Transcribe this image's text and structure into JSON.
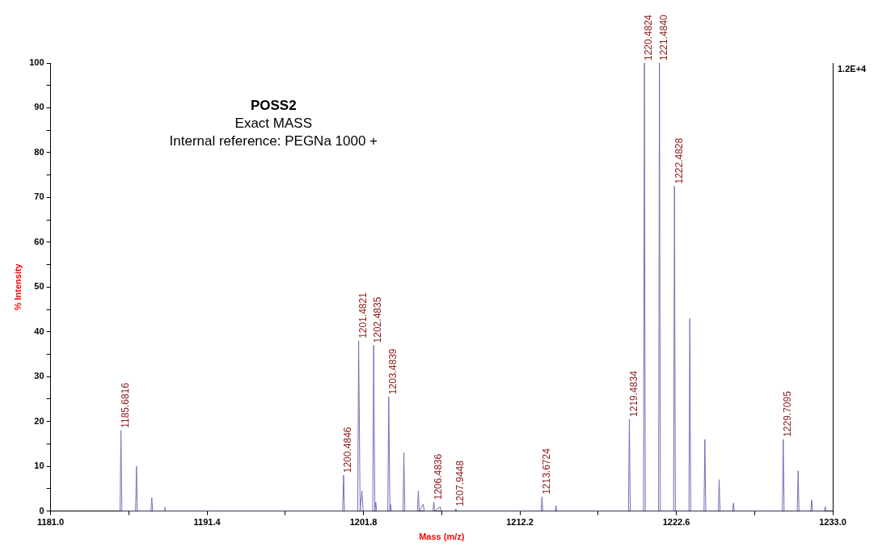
{
  "chart_data": {
    "type": "line",
    "title": "POSS2",
    "subtitle": "Exact MASS",
    "xlabel": "Mass (m/z)",
    "ylabel": "% Intensity",
    "annotations": [
      "Internal reference: PEGNa 1000 +",
      "1.2E+4",
      {
        "text": "1185.6816",
        "x": 1185.68,
        "y": 18
      },
      {
        "text": "1200.4846",
        "x": 1200.48,
        "y": 8
      },
      {
        "text": "1201.4821",
        "x": 1201.48,
        "y": 38
      },
      {
        "text": "1202.4835",
        "x": 1202.48,
        "y": 37
      },
      {
        "text": "1203.4839",
        "x": 1203.48,
        "y": 25.5
      },
      {
        "text": "1206.4836",
        "x": 1206.48,
        "y": 2
      },
      {
        "text": "1207.9448",
        "x": 1207.94,
        "y": 0.5
      },
      {
        "text": "1213.6724",
        "x": 1213.67,
        "y": 3.2
      },
      {
        "text": "1219.4834",
        "x": 1219.48,
        "y": 20.5
      },
      {
        "text": "1220.4824",
        "x": 1220.48,
        "y": 100
      },
      {
        "text": "1221.4840",
        "x": 1221.48,
        "y": 100
      },
      {
        "text": "1222.4828",
        "x": 1222.48,
        "y": 72.5
      },
      {
        "text": "1229.7095",
        "x": 1229.71,
        "y": 16
      }
    ],
    "series": [
      {
        "color": "#7070b8",
        "x": [
          1185.62,
          1185.68,
          1185.74,
          1186.65,
          1186.71,
          1186.77,
          1187.67,
          1187.73,
          1187.79,
          1188.55,
          1188.6,
          1188.65,
          1200.42,
          1200.48,
          1200.54,
          1201.42,
          1201.48,
          1201.58,
          1201.7,
          1201.78,
          1202.42,
          1202.48,
          1202.56,
          1202.62,
          1202.68,
          1203.42,
          1203.48,
          1203.56,
          1203.6,
          1203.66,
          1204.43,
          1204.49,
          1204.55,
          1205.39,
          1205.45,
          1205.51,
          1205.77,
          1205.85,
          1206.42,
          1206.48,
          1206.54,
          1206.9,
          1206.98,
          1207.88,
          1207.94,
          1208.0,
          1213.61,
          1213.67,
          1213.73,
          1214.54,
          1214.6,
          1214.66,
          1219.42,
          1219.48,
          1219.54,
          1220.42,
          1220.48,
          1220.54,
          1221.42,
          1221.48,
          1221.54,
          1222.42,
          1222.48,
          1222.54,
          1223.44,
          1223.5,
          1223.56,
          1224.44,
          1224.5,
          1224.56,
          1225.39,
          1225.45,
          1225.51,
          1226.34,
          1226.4,
          1226.46,
          1229.65,
          1229.71,
          1229.77,
          1230.64,
          1230.7,
          1230.76,
          1231.54,
          1231.6,
          1231.66,
          1232.44,
          1232.5,
          1232.56
        ],
        "values": [
          0,
          18,
          0,
          0,
          10,
          0,
          0,
          3,
          0,
          0,
          0.8,
          0,
          0,
          8,
          0,
          0,
          38,
          0,
          4.5,
          0,
          0,
          37,
          0,
          2,
          0,
          0,
          25.5,
          0,
          1.5,
          0,
          0,
          13,
          0,
          0,
          4.5,
          0,
          1.5,
          0,
          0,
          2,
          0,
          1,
          0,
          0,
          0.5,
          0,
          0,
          3.2,
          0,
          0,
          1.2,
          0,
          0,
          20.5,
          0,
          0,
          100,
          0,
          0,
          100,
          0,
          0,
          72.5,
          0,
          0,
          43,
          0,
          0,
          16,
          0,
          0,
          7,
          0,
          0,
          1.8,
          0,
          0,
          16,
          0,
          0,
          9,
          0,
          0,
          2.5,
          0,
          0,
          1,
          0
        ]
      }
    ],
    "xlim": [
      1181.0,
      1233.0
    ],
    "xticks": [
      {
        "value": 1181.0,
        "label": "1181.0"
      },
      {
        "value": 1186.2,
        "label": null
      },
      {
        "value": 1191.4,
        "label": "1191.4"
      },
      {
        "value": 1196.6,
        "label": null
      },
      {
        "value": 1201.8,
        "label": "1201.8"
      },
      {
        "value": 1207.0,
        "label": null
      },
      {
        "value": 1212.2,
        "label": "1212.2"
      },
      {
        "value": 1217.4,
        "label": null
      },
      {
        "value": 1222.6,
        "label": "1222.6"
      },
      {
        "value": 1227.8,
        "label": null
      },
      {
        "value": 1233.0,
        "label": "1233.0"
      }
    ],
    "ylim": [
      0,
      100
    ],
    "yticks": [
      0,
      {
        "value": 5,
        "label": null
      },
      10,
      {
        "value": 15,
        "label": null
      },
      20,
      {
        "value": 25,
        "label": null
      },
      30,
      {
        "value": 35,
        "label": null
      },
      40,
      {
        "value": 45,
        "label": null
      },
      50,
      {
        "value": 55,
        "label": null
      },
      60,
      {
        "value": 65,
        "label": null
      },
      70,
      {
        "value": 75,
        "label": null
      },
      80,
      {
        "value": 85,
        "label": null
      },
      90,
      {
        "value": 95,
        "label": null
      },
      100
    ],
    "grid": false,
    "legend": false,
    "marker": "none",
    "line_style": "solid"
  }
}
